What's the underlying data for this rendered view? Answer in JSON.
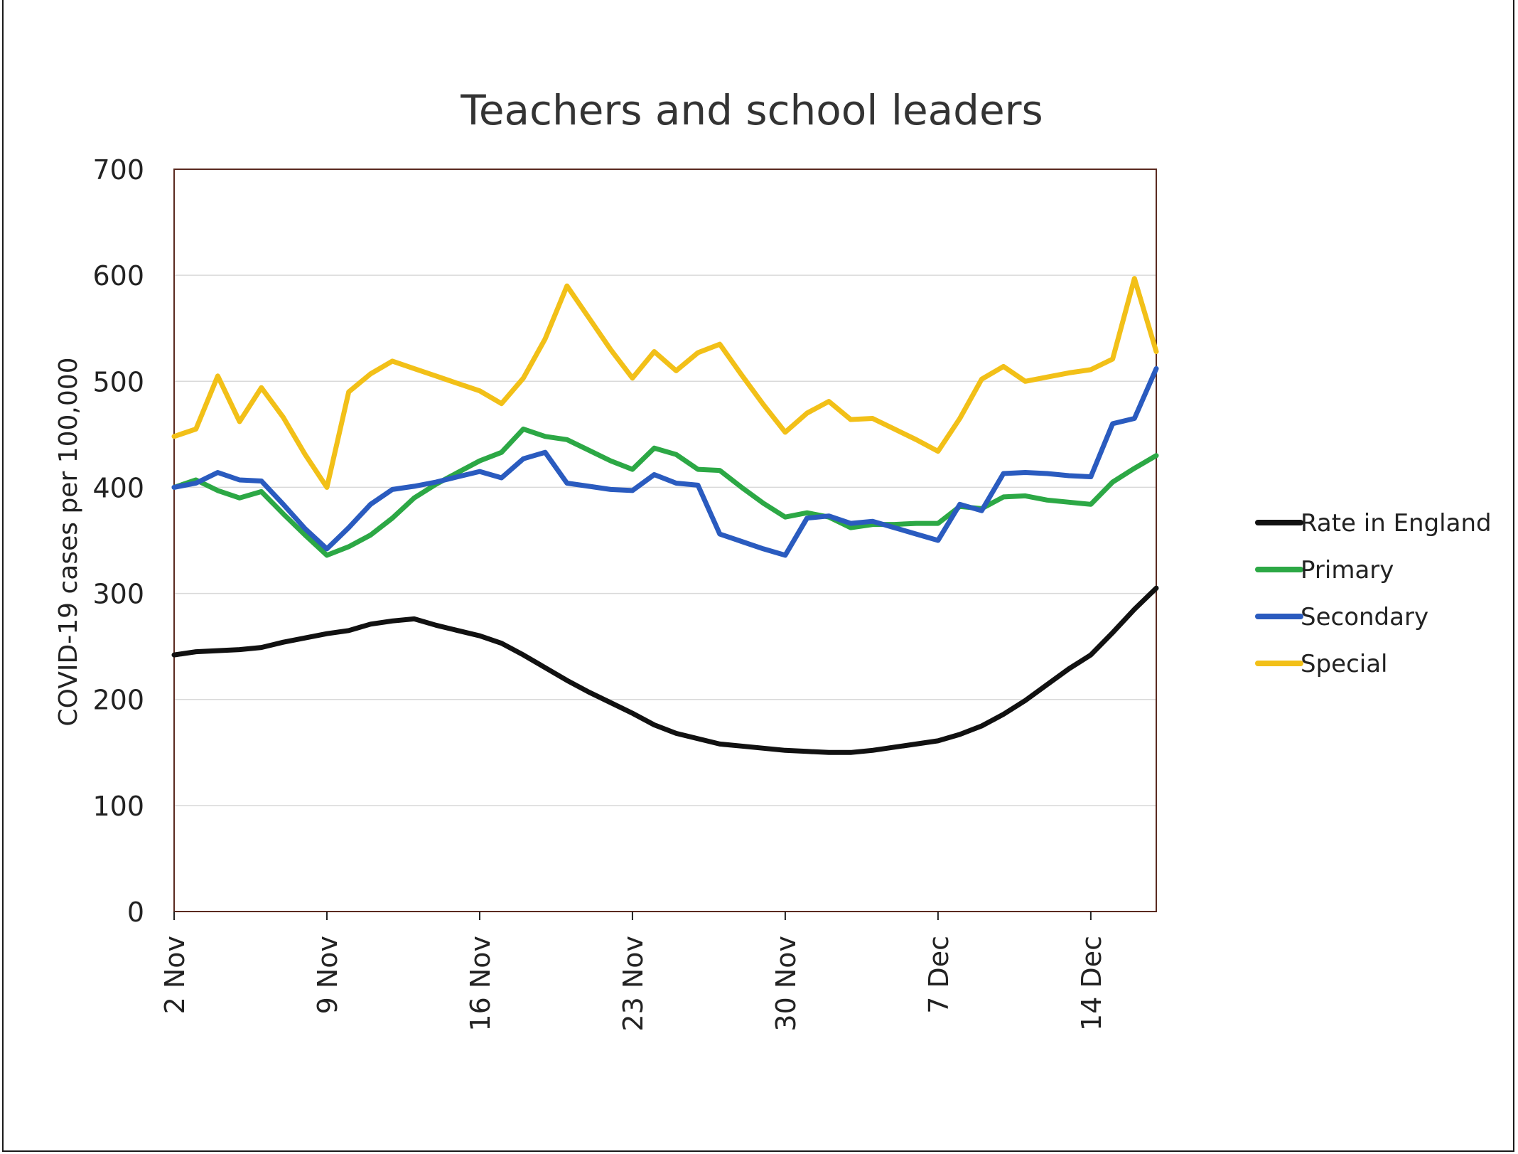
{
  "chart_data": {
    "type": "line",
    "title": "Teachers and school leaders",
    "xlabel": "",
    "ylabel": "COVID-19 cases per 100,000",
    "ylim": [
      0,
      700
    ],
    "yticks": [
      0,
      100,
      200,
      300,
      400,
      500,
      600,
      700
    ],
    "xlim": [
      "2 Nov",
      "17 Dec"
    ],
    "xticks": [
      "2 Nov",
      "9 Nov",
      "16 Nov",
      "23 Nov",
      "30 Nov",
      "7 Dec",
      "14 Dec"
    ],
    "grid": true,
    "legend_position": "right",
    "x": [
      "2 Nov",
      "3 Nov",
      "4 Nov",
      "5 Nov",
      "6 Nov",
      "7 Nov",
      "8 Nov",
      "9 Nov",
      "10 Nov",
      "11 Nov",
      "12 Nov",
      "13 Nov",
      "14 Nov",
      "15 Nov",
      "16 Nov",
      "17 Nov",
      "18 Nov",
      "19 Nov",
      "20 Nov",
      "21 Nov",
      "22 Nov",
      "23 Nov",
      "24 Nov",
      "25 Nov",
      "26 Nov",
      "27 Nov",
      "28 Nov",
      "29 Nov",
      "30 Nov",
      "1 Dec",
      "2 Dec",
      "3 Dec",
      "4 Dec",
      "5 Dec",
      "6 Dec",
      "7 Dec",
      "8 Dec",
      "9 Dec",
      "10 Dec",
      "11 Dec",
      "12 Dec",
      "13 Dec",
      "14 Dec",
      "15 Dec",
      "16 Dec",
      "17 Dec"
    ],
    "series": [
      {
        "name": "Rate in England",
        "color": "#111111",
        "values": [
          242,
          245,
          246,
          247,
          249,
          254,
          258,
          262,
          265,
          271,
          274,
          276,
          270,
          265,
          260,
          253,
          242,
          230,
          218,
          207,
          197,
          187,
          176,
          168,
          163,
          158,
          156,
          154,
          152,
          151,
          150,
          150,
          152,
          155,
          158,
          161,
          167,
          175,
          186,
          199,
          214,
          229,
          242,
          263,
          285,
          305
        ]
      },
      {
        "name": "Primary",
        "color": "#2ca845",
        "values": [
          400,
          407,
          397,
          390,
          396,
          375,
          355,
          336,
          344,
          355,
          371,
          390,
          403,
          414,
          425,
          433,
          455,
          448,
          445,
          435,
          425,
          417,
          437,
          431,
          417,
          416,
          400,
          385,
          372,
          376,
          372,
          362,
          365,
          365,
          366,
          366,
          382,
          380,
          391,
          392,
          388,
          386,
          384,
          405,
          418,
          430
        ]
      },
      {
        "name": "Secondary",
        "color": "#2a5bbf",
        "values": [
          400,
          404,
          414,
          407,
          406,
          384,
          361,
          342,
          362,
          384,
          398,
          401,
          405,
          410,
          415,
          409,
          427,
          433,
          404,
          401,
          398,
          397,
          412,
          404,
          402,
          356,
          349,
          342,
          336,
          371,
          373,
          366,
          368,
          362,
          356,
          350,
          384,
          378,
          413,
          414,
          413,
          411,
          410,
          460,
          465,
          512
        ]
      },
      {
        "name": "Special",
        "color": "#f2c018",
        "values": [
          448,
          455,
          505,
          462,
          494,
          466,
          431,
          400,
          490,
          507,
          519,
          512,
          505,
          498,
          491,
          479,
          503,
          540,
          590,
          560,
          530,
          503,
          528,
          510,
          527,
          535,
          506,
          478,
          452,
          470,
          481,
          464,
          465,
          455,
          445,
          434,
          465,
          502,
          514,
          500,
          504,
          508,
          511,
          521,
          597,
          528
        ]
      }
    ]
  }
}
